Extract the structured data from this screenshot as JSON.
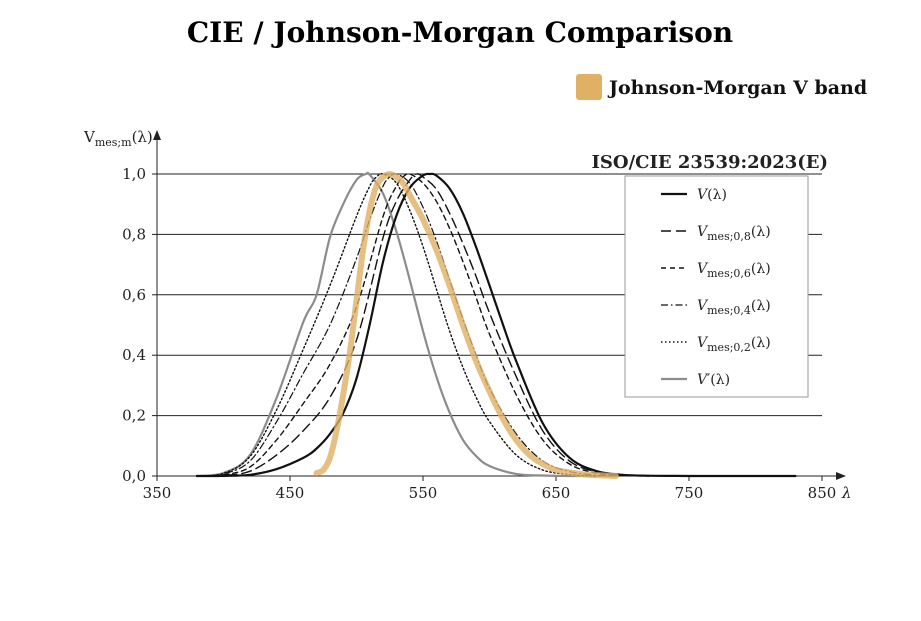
{
  "chart_data": {
    "type": "line",
    "title": "CIE / Johnson-Morgan Comparison",
    "overlay_legend": "Johnson-Morgan V band",
    "standard_label": "ISO/CIE 23539:2023(E)",
    "ylabel": {
      "main": "V",
      "sub": "mes;m",
      "suffix": "(λ)"
    },
    "xlabel": "λ",
    "xlim": [
      350,
      850
    ],
    "ylim": [
      0,
      1
    ],
    "x_ticks": [
      "350",
      "450",
      "550",
      "650",
      "750",
      "850"
    ],
    "y_ticks": [
      "0,0",
      "0,2",
      "0,4",
      "0,6",
      "0,8",
      "1,0"
    ],
    "grid": true,
    "colors": {
      "black": "#111111",
      "grey": "#8c8c8c",
      "jm_band": "#e0b064",
      "legend_border": "#9a9a9a"
    },
    "series": [
      {
        "key": "v",
        "label": {
          "main": "V",
          "sub": "",
          "suffix": "(λ)"
        },
        "style": "solid",
        "x": [
          380,
          400,
          420,
          440,
          460,
          470,
          480,
          490,
          500,
          510,
          520,
          530,
          540,
          550,
          555,
          560,
          570,
          580,
          590,
          600,
          610,
          620,
          640,
          660,
          680,
          700,
          720,
          740,
          760,
          780,
          830
        ],
        "y": [
          0.0,
          0.0004,
          0.004,
          0.023,
          0.06,
          0.091,
          0.139,
          0.208,
          0.323,
          0.503,
          0.71,
          0.862,
          0.954,
          0.995,
          1.0,
          0.995,
          0.952,
          0.87,
          0.757,
          0.631,
          0.503,
          0.381,
          0.175,
          0.061,
          0.017,
          0.004,
          0.001,
          0.0002,
          0.0,
          0.0,
          0.0
        ]
      },
      {
        "key": "m08",
        "label": {
          "main": "V",
          "sub": "mes;0,8",
          "suffix": "(λ)"
        },
        "style": "longdash",
        "x": [
          380,
          400,
          420,
          440,
          460,
          480,
          500,
          520,
          530,
          540,
          545,
          550,
          560,
          570,
          580,
          590,
          600,
          620,
          640,
          660,
          680,
          700,
          720
        ],
        "y": [
          0.0,
          0.002,
          0.016,
          0.07,
          0.15,
          0.26,
          0.45,
          0.79,
          0.91,
          0.98,
          1.0,
          0.99,
          0.95,
          0.87,
          0.77,
          0.66,
          0.54,
          0.33,
          0.15,
          0.05,
          0.014,
          0.003,
          0.0
        ]
      },
      {
        "key": "m06",
        "label": {
          "main": "V",
          "sub": "mes;0,6",
          "suffix": "(λ)"
        },
        "style": "dash",
        "x": [
          380,
          400,
          420,
          440,
          460,
          480,
          500,
          520,
          530,
          535,
          540,
          550,
          560,
          570,
          580,
          590,
          600,
          620,
          640,
          660,
          680,
          700,
          720
        ],
        "y": [
          0.0,
          0.004,
          0.03,
          0.12,
          0.24,
          0.37,
          0.56,
          0.86,
          0.96,
          0.99,
          1.0,
          0.97,
          0.91,
          0.82,
          0.71,
          0.59,
          0.47,
          0.27,
          0.12,
          0.04,
          0.01,
          0.002,
          0.0
        ]
      },
      {
        "key": "m04",
        "label": {
          "main": "V",
          "sub": "mes;0,4",
          "suffix": "(λ)"
        },
        "style": "dashdot",
        "x": [
          380,
          400,
          420,
          440,
          460,
          480,
          500,
          510,
          520,
          525,
          530,
          540,
          550,
          560,
          570,
          580,
          590,
          600,
          620,
          640,
          660,
          680,
          700
        ],
        "y": [
          0.0,
          0.007,
          0.05,
          0.18,
          0.34,
          0.5,
          0.72,
          0.85,
          0.96,
          0.99,
          1.0,
          0.97,
          0.89,
          0.78,
          0.65,
          0.52,
          0.4,
          0.29,
          0.14,
          0.05,
          0.015,
          0.003,
          0.0
        ]
      },
      {
        "key": "m02",
        "label": {
          "main": "V",
          "sub": "mes;0,2",
          "suffix": "(λ)"
        },
        "style": "dotted",
        "x": [
          380,
          400,
          420,
          440,
          460,
          480,
          500,
          510,
          515,
          520,
          530,
          540,
          550,
          560,
          570,
          580,
          590,
          600,
          620,
          640,
          660,
          680
        ],
        "y": [
          0.0,
          0.009,
          0.065,
          0.22,
          0.42,
          0.63,
          0.86,
          0.96,
          0.99,
          1.0,
          0.97,
          0.88,
          0.76,
          0.62,
          0.48,
          0.36,
          0.26,
          0.18,
          0.07,
          0.02,
          0.005,
          0.0
        ]
      },
      {
        "key": "vp",
        "label": {
          "main": "V",
          "sub": "",
          "suffix": "′(λ)"
        },
        "style": "grey",
        "x": [
          380,
          400,
          420,
          440,
          460,
          470,
          480,
          490,
          500,
          507,
          510,
          520,
          530,
          540,
          550,
          560,
          570,
          580,
          590,
          600,
          620,
          640,
          660,
          680
        ],
        "y": [
          0.0,
          0.01,
          0.07,
          0.26,
          0.51,
          0.6,
          0.79,
          0.9,
          0.98,
          1.0,
          0.997,
          0.935,
          0.81,
          0.65,
          0.48,
          0.33,
          0.21,
          0.12,
          0.066,
          0.033,
          0.007,
          0.0015,
          0.0,
          0.0
        ]
      },
      {
        "key": "jm",
        "label": {
          "main": "Johnson-Morgan V band",
          "sub": "",
          "suffix": ""
        },
        "style": "band",
        "x": [
          470,
          475,
          480,
          485,
          490,
          495,
          500,
          505,
          510,
          515,
          520,
          525,
          530,
          535,
          540,
          550,
          560,
          570,
          580,
          590,
          600,
          610,
          620,
          630,
          640,
          650,
          660,
          670,
          680,
          695
        ],
        "y": [
          0.01,
          0.02,
          0.06,
          0.15,
          0.27,
          0.41,
          0.58,
          0.75,
          0.88,
          0.96,
          0.99,
          1.0,
          0.99,
          0.97,
          0.93,
          0.85,
          0.75,
          0.63,
          0.5,
          0.38,
          0.28,
          0.19,
          0.12,
          0.07,
          0.04,
          0.02,
          0.012,
          0.006,
          0.003,
          0.0
        ]
      }
    ]
  }
}
